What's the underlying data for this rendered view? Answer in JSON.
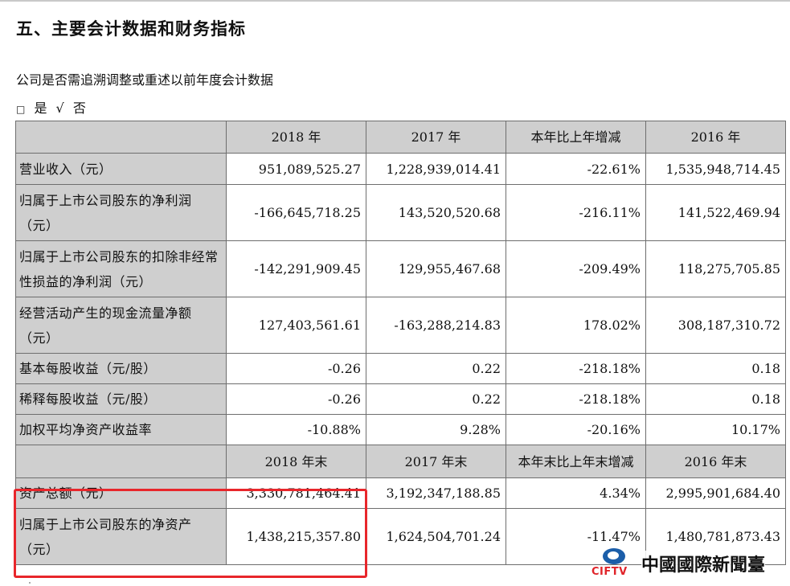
{
  "section_title": "五、主要会计数据和财务指标",
  "restate_question": "公司是否需追溯调整或重述以前年度会计数据",
  "options": {
    "yes_box": "□",
    "yes_label": "是",
    "no_mark": "√",
    "no_label": "否"
  },
  "table": {
    "header1": [
      "",
      "2018 年",
      "2017 年",
      "本年比上年增减",
      "2016 年"
    ],
    "rows1": [
      [
        "营业收入（元）",
        "951,089,525.27",
        "1,228,939,014.41",
        "-22.61%",
        "1,535,948,714.45"
      ],
      [
        "归属于上市公司股东的净利润（元）",
        "-166,645,718.25",
        "143,520,520.68",
        "-216.11%",
        "141,522,469.94"
      ],
      [
        "归属于上市公司股东的扣除非经常性损益的净利润（元）",
        "-142,291,909.45",
        "129,955,467.68",
        "-209.49%",
        "118,275,705.85"
      ],
      [
        "经营活动产生的现金流量净额（元）",
        "127,403,561.61",
        "-163,288,214.83",
        "178.02%",
        "308,187,310.72"
      ],
      [
        "基本每股收益（元/股）",
        "-0.26",
        "0.22",
        "-218.18%",
        "0.18"
      ],
      [
        "稀释每股收益（元/股）",
        "-0.26",
        "0.22",
        "-218.18%",
        "0.18"
      ],
      [
        "加权平均净资产收益率",
        "-10.88%",
        "9.28%",
        "-20.16%",
        "10.17%"
      ]
    ],
    "header2": [
      "",
      "2018 年末",
      "2017 年末",
      "本年末比上年末增减",
      "2016 年末"
    ],
    "rows2": [
      [
        "资产总额（元）",
        "3,330,781,464.41",
        "3,192,347,188.85",
        "4.34%",
        "2,995,901,684.40"
      ],
      [
        "归属于上市公司股东的净资产（元）",
        "1,438,215,357.80",
        "1,624,504,701.24",
        "-11.47%",
        "1,480,781,873.43"
      ]
    ]
  },
  "watermark": {
    "logo_text": "CIFTV",
    "name": "中國國際新聞臺"
  },
  "colors": {
    "header_bg": "#cfcfcf",
    "highlight": "#e8262b",
    "logo_blue": "#1b5ea9",
    "logo_red": "#e0242a"
  }
}
